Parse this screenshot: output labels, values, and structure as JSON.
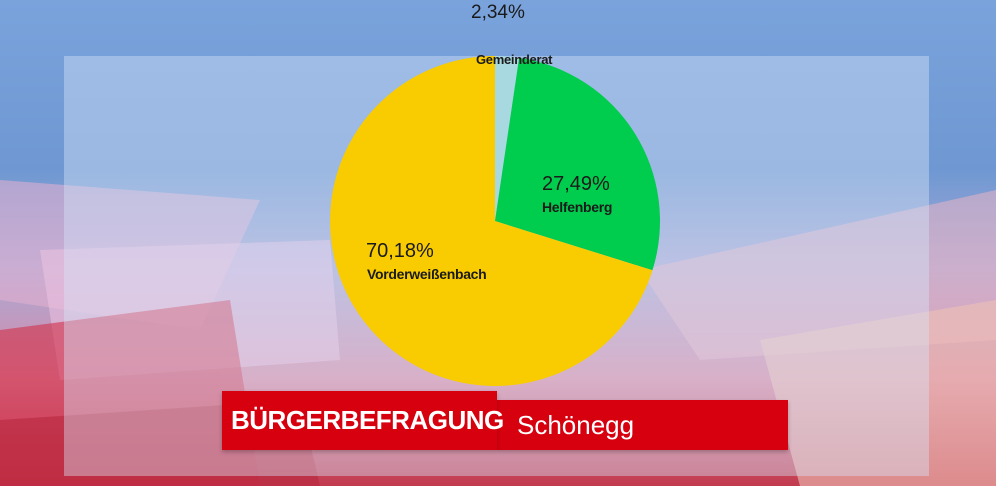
{
  "chart_data": {
    "type": "pie",
    "title": "",
    "slices": [
      {
        "label": "Gemeinderat",
        "value": 2.34,
        "display": "2,34%",
        "color": "#a8d8e0"
      },
      {
        "label": "Helfenberg",
        "value": 27.49,
        "display": "27,49%",
        "color": "#00cc4d"
      },
      {
        "label": "Vorderweißenbach",
        "value": 70.18,
        "display": "70,18%",
        "color": "#f8cc00"
      }
    ],
    "start_angle_deg": 0,
    "direction": "clockwise from 12 o'clock"
  },
  "labels": {
    "gemeinderat": {
      "pct": "2,34%",
      "name": "Gemeinderat"
    },
    "helfenberg": {
      "pct": "27,49%",
      "name": "Helfenberg"
    },
    "vorderweissenbach": {
      "pct": "70,18%",
      "name": "Vorderweißenbach"
    }
  },
  "banner": {
    "title": "BÜRGERBEFRAGUNG",
    "subtitle": "Schönegg",
    "color": "#d7000f"
  }
}
